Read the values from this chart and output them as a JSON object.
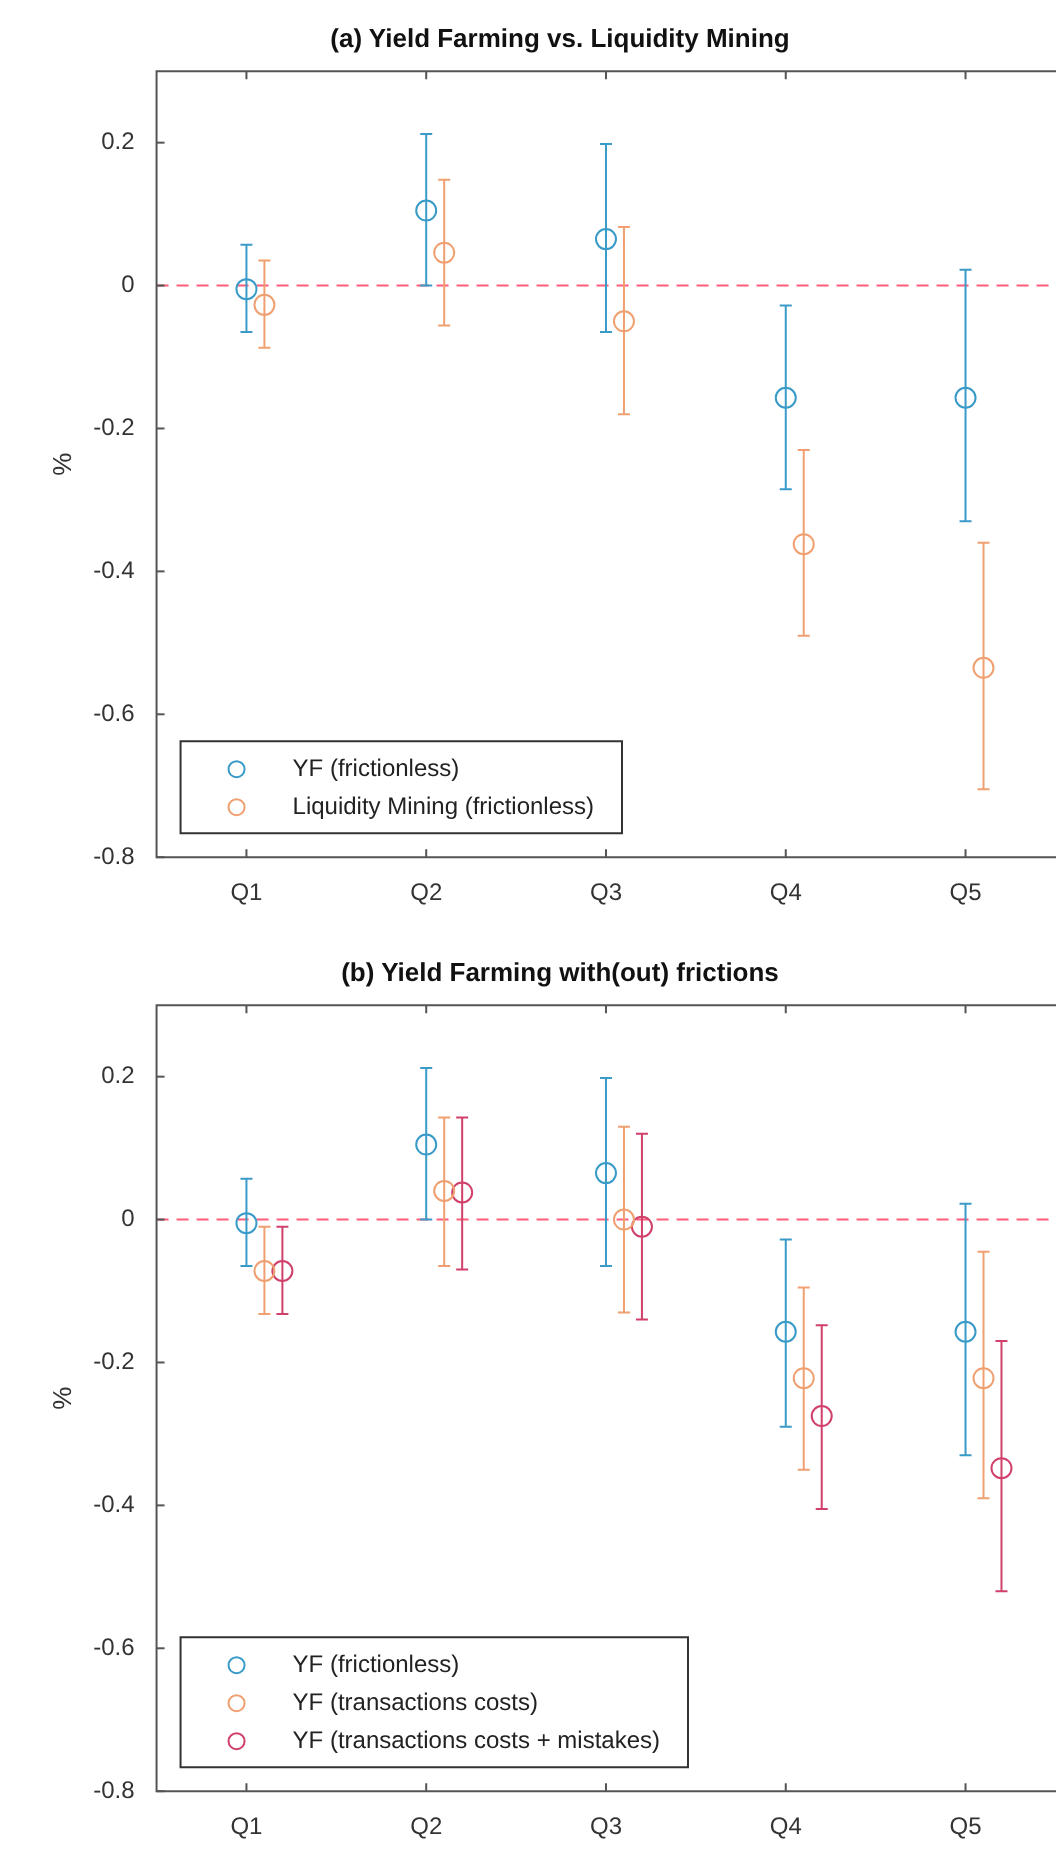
{
  "chart_data": [
    {
      "type": "scatter",
      "title": "(a) Yield Farming vs. Liquidity Mining",
      "ylabel": "%",
      "categories": [
        "Q1",
        "Q2",
        "Q3",
        "Q4",
        "Q5"
      ],
      "ylim": [
        -0.8,
        0.3
      ],
      "yticks": [
        -0.8,
        -0.6,
        -0.4,
        -0.2,
        0,
        0.2
      ],
      "grid": false,
      "legend": "bottom left",
      "marker": "circle",
      "series": [
        {
          "name": "YF (frictionless)",
          "color": "#3a9bc8",
          "values": [
            -0.005,
            0.105,
            0.065,
            -0.157,
            -0.157
          ],
          "errors": [
            [
              -0.065,
              0.057
            ],
            [
              0,
              0.212
            ],
            [
              -0.065,
              0.198
            ],
            [
              -0.285,
              -0.028
            ],
            [
              -0.33,
              0.022
            ]
          ]
        },
        {
          "name": "Liquidity Mining (frictionless)",
          "color": "#f0a070",
          "values": [
            -0.027,
            0.046,
            -0.05,
            -0.362,
            -0.535
          ],
          "errors": [
            [
              -0.087,
              0.035
            ],
            [
              -0.056,
              0.148
            ],
            [
              -0.18,
              0.082
            ],
            [
              -0.49,
              -0.23
            ],
            [
              -0.705,
              -0.36
            ]
          ]
        }
      ],
      "ref_lines": [
        {
          "axis": "y",
          "value": 0,
          "color": "#ff5c7a",
          "line_style": "dashed"
        }
      ]
    },
    {
      "type": "scatter",
      "title": "(b) Yield Farming with(out) frictions",
      "ylabel": "%",
      "categories": [
        "Q1",
        "Q2",
        "Q3",
        "Q4",
        "Q5"
      ],
      "ylim": [
        -0.8,
        0.3
      ],
      "yticks": [
        -0.8,
        -0.6,
        -0.4,
        -0.2,
        0,
        0.2
      ],
      "grid": false,
      "legend": "bottom left",
      "marker": "circle",
      "series": [
        {
          "name": "YF (frictionless)",
          "color": "#3a9bc8",
          "values": [
            -0.005,
            0.105,
            0.065,
            -0.157,
            -0.157
          ],
          "errors": [
            [
              -0.065,
              0.057
            ],
            [
              0,
              0.212
            ],
            [
              -0.065,
              0.198
            ],
            [
              -0.29,
              -0.028
            ],
            [
              -0.33,
              0.022
            ]
          ]
        },
        {
          "name": "YF (transactions costs)",
          "color": "#f0a070",
          "values": [
            -0.072,
            0.04,
            0.0,
            -0.222,
            -0.222
          ],
          "errors": [
            [
              -0.132,
              -0.01
            ],
            [
              -0.065,
              0.143
            ],
            [
              -0.13,
              0.13
            ],
            [
              -0.35,
              -0.095
            ],
            [
              -0.39,
              -0.045
            ]
          ]
        },
        {
          "name": "YF (transactions costs + mistakes)",
          "color": "#d0406a",
          "values": [
            -0.072,
            0.038,
            -0.01,
            -0.275,
            -0.348
          ],
          "errors": [
            [
              -0.132,
              -0.01
            ],
            [
              -0.07,
              0.143
            ],
            [
              -0.14,
              0.12
            ],
            [
              -0.405,
              -0.148
            ],
            [
              -0.52,
              -0.17
            ]
          ]
        }
      ],
      "ref_lines": [
        {
          "axis": "y",
          "value": 0,
          "color": "#ff5c7a",
          "line_style": "dashed"
        }
      ]
    }
  ]
}
